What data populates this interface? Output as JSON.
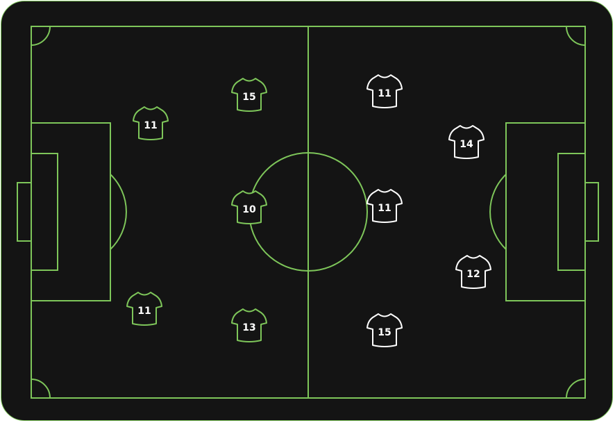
{
  "pitch": {
    "background": "#141414",
    "line_color": "#7ec65a"
  },
  "teams": [
    {
      "name": "",
      "side": "left",
      "kit_outline": "#7ec65a",
      "players": [
        {
          "number": "11",
          "shirt": "jersey-icon"
        },
        {
          "number": "15",
          "shirt": "jersey-icon"
        },
        {
          "number": "10",
          "shirt": "jersey-icon"
        },
        {
          "number": "11",
          "shirt": "jersey-icon"
        },
        {
          "number": "13",
          "shirt": "jersey-icon"
        }
      ]
    },
    {
      "name": "",
      "side": "right",
      "kit_outline": "#ffffff",
      "players": [
        {
          "number": "11",
          "shirt": "jersey-icon"
        },
        {
          "number": "14",
          "shirt": "jersey-icon"
        },
        {
          "number": "11",
          "shirt": "jersey-icon"
        },
        {
          "number": "12",
          "shirt": "jersey-icon"
        },
        {
          "number": "15",
          "shirt": "jersey-icon"
        }
      ]
    }
  ]
}
